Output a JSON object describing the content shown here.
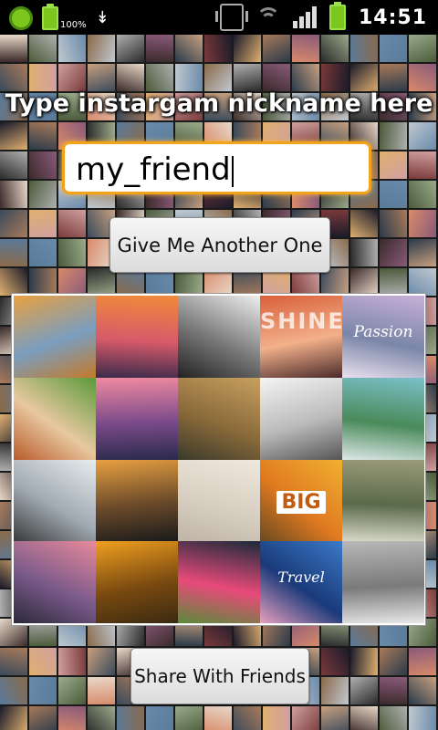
{
  "status_bar": {
    "battery_percent": "100%",
    "time": "14:51"
  },
  "main": {
    "headline": "Type instargam nickname here",
    "nickname_input": {
      "value": "my_friend"
    },
    "another_button_label": "Give Me Another One",
    "share_button_label": "Share With Friends"
  },
  "collage": {
    "tiles": [
      {
        "name": "eiffel-autumn-photo",
        "colors": [
          "#e8a040",
          "#7a9ec0",
          "#c47a2a"
        ],
        "text": ""
      },
      {
        "name": "eiffel-sunset-photo",
        "colors": [
          "#f08a3a",
          "#d65a6a",
          "#3a2a4a"
        ],
        "text": ""
      },
      {
        "name": "pier-bw-photo",
        "colors": [
          "#eeeeee",
          "#777777",
          "#222222"
        ],
        "text": ""
      },
      {
        "name": "shine-text-photo",
        "colors": [
          "#d9603a",
          "#f2b08a",
          "#4a2a2a"
        ],
        "text": "SHINE"
      },
      {
        "name": "passion-balloon-photo",
        "colors": [
          "#c8b0d8",
          "#7a86a8",
          "#eae0ee"
        ],
        "text": "Passion"
      },
      {
        "name": "dog-photo",
        "colors": [
          "#5a9a3a",
          "#e8c8a0",
          "#b85a2a"
        ],
        "text": ""
      },
      {
        "name": "pier-sunset-photo",
        "colors": [
          "#f08aa0",
          "#7a4a8a",
          "#2a2a4a"
        ],
        "text": ""
      },
      {
        "name": "autumn-road-photo",
        "colors": [
          "#c8a060",
          "#8a6a3a",
          "#3a3a2a"
        ],
        "text": ""
      },
      {
        "name": "typography-poster-photo",
        "colors": [
          "#f4f4f4",
          "#bbbbbb",
          "#555555"
        ],
        "text": ""
      },
      {
        "name": "lake-mountain-photo",
        "colors": [
          "#7ac0c8",
          "#4a8a5a",
          "#dde8e8"
        ],
        "text": ""
      },
      {
        "name": "dandelion-photo",
        "colors": [
          "#e8ecee",
          "#a0aab2",
          "#3a3a3a"
        ],
        "text": ""
      },
      {
        "name": "palm-sunset-photo",
        "colors": [
          "#e8a040",
          "#6a4a2a",
          "#1a1a1a"
        ],
        "text": ""
      },
      {
        "name": "eiffel-faded-photo",
        "colors": [
          "#efe8dc",
          "#d8cfc2",
          "#bfb4a6"
        ],
        "text": ""
      },
      {
        "name": "big-road-photo",
        "colors": [
          "#f0b030",
          "#e07a20",
          "#6a4a20"
        ],
        "text": "BIG"
      },
      {
        "name": "grass-photo",
        "colors": [
          "#9a9a7a",
          "#5a6a4a",
          "#d8d8c8"
        ],
        "text": ""
      },
      {
        "name": "lantern-beach-photo",
        "colors": [
          "#e88a9a",
          "#7a5a8a",
          "#2a2a3a"
        ],
        "text": ""
      },
      {
        "name": "autumn-forest-photo",
        "colors": [
          "#f0a020",
          "#7a4a10",
          "#3a2a10"
        ],
        "text": ""
      },
      {
        "name": "flower-sign-photo",
        "colors": [
          "#1a2a3a",
          "#e84a7a",
          "#5a8a3a"
        ],
        "text": ""
      },
      {
        "name": "travel-photo",
        "colors": [
          "#3a7ac8",
          "#1a3a7a",
          "#e8a0c0"
        ],
        "text": "Travel"
      },
      {
        "name": "stone-plaque-photo",
        "colors": [
          "#b8b8b8",
          "#7a7a7a",
          "#e8e8e8"
        ],
        "text": ""
      }
    ]
  },
  "background_palette": [
    "#3a2a2a",
    "#8a6a4a",
    "#c8a080",
    "#2a3a4a",
    "#5a7a9a",
    "#e8d8c8",
    "#7a3a3a",
    "#4a5a3a",
    "#b0b0b0",
    "#1a1a2a",
    "#d88a6a",
    "#6a8aaa",
    "#a87a5a",
    "#3a4a5a",
    "#c0c8d0",
    "#8a5a7a",
    "#e0b070",
    "#2a2a2a",
    "#9aaa8a",
    "#d0a0a0"
  ]
}
